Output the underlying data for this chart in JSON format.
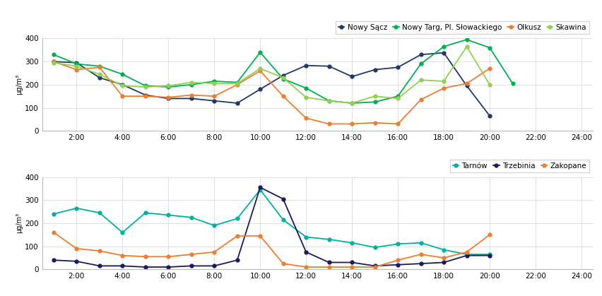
{
  "x_ticks": [
    "2:00",
    "4:00",
    "6:00",
    "8:00",
    "10:00",
    "12:00",
    "14:00",
    "16:00",
    "18:00",
    "20:00",
    "22:00",
    "24:00"
  ],
  "xtick_positions": [
    2,
    4,
    6,
    8,
    10,
    12,
    14,
    16,
    18,
    20,
    22,
    24
  ],
  "chart1_series": [
    {
      "label": "Nowy Sącz",
      "color": "#1f3864",
      "x": [
        1,
        2,
        3,
        4,
        5,
        6,
        7,
        8,
        9,
        10,
        11,
        12,
        13,
        14,
        15,
        16,
        17,
        18,
        19,
        20
      ],
      "y": [
        300,
        295,
        230,
        200,
        155,
        140,
        140,
        130,
        120,
        180,
        240,
        283,
        280,
        235,
        265,
        275,
        330,
        338,
        195,
        65
      ]
    },
    {
      "label": "Nowy Targ, Pl. Słowackiego",
      "color": "#00b050",
      "x": [
        1,
        2,
        3,
        4,
        5,
        6,
        7,
        8,
        9,
        10,
        11,
        12,
        13,
        14,
        15,
        16,
        17,
        18,
        19,
        20,
        21
      ],
      "y": [
        330,
        290,
        280,
        245,
        195,
        190,
        200,
        215,
        210,
        340,
        225,
        185,
        130,
        120,
        125,
        150,
        290,
        365,
        395,
        360,
        205
      ]
    },
    {
      "label": "Olkusz",
      "color": "#ed7d31",
      "x": [
        1,
        2,
        3,
        4,
        5,
        6,
        7,
        8,
        9,
        10,
        11,
        12,
        13,
        14,
        15,
        16,
        17,
        18,
        19,
        20
      ],
      "y": [
        300,
        265,
        275,
        150,
        150,
        145,
        155,
        150,
        200,
        260,
        150,
        55,
        30,
        30,
        35,
        30,
        135,
        185,
        205,
        270
      ]
    },
    {
      "label": "Skawina",
      "color": "#92d050",
      "x": [
        1,
        2,
        3,
        4,
        5,
        6,
        7,
        8,
        9,
        10,
        11,
        12,
        13,
        14,
        15,
        16,
        17,
        18,
        19,
        20
      ],
      "y": [
        295,
        280,
        245,
        195,
        190,
        195,
        210,
        205,
        205,
        270,
        230,
        145,
        130,
        120,
        150,
        140,
        220,
        215,
        365,
        200
      ]
    }
  ],
  "chart2_series": [
    {
      "label": "Tarnów",
      "color": "#00b0a0",
      "x": [
        1,
        2,
        3,
        4,
        5,
        6,
        7,
        8,
        9,
        10,
        11,
        12,
        13,
        14,
        15,
        16,
        17,
        18,
        19,
        20
      ],
      "y": [
        240,
        265,
        245,
        160,
        245,
        235,
        225,
        190,
        220,
        345,
        215,
        140,
        130,
        115,
        95,
        110,
        115,
        85,
        65,
        65
      ]
    },
    {
      "label": "Trzebinia",
      "color": "#1a1a5e",
      "x": [
        1,
        2,
        3,
        4,
        5,
        6,
        7,
        8,
        9,
        10,
        11,
        12,
        13,
        14,
        15,
        16,
        17,
        18,
        19,
        20
      ],
      "y": [
        40,
        35,
        15,
        15,
        10,
        10,
        15,
        15,
        40,
        355,
        305,
        75,
        30,
        30,
        15,
        20,
        25,
        30,
        60,
        60
      ]
    },
    {
      "label": "Zakopane",
      "color": "#ed7d31",
      "x": [
        1,
        2,
        3,
        4,
        5,
        6,
        7,
        8,
        9,
        10,
        11,
        12,
        13,
        14,
        15,
        16,
        17,
        18,
        19,
        20
      ],
      "y": [
        160,
        90,
        80,
        60,
        55,
        55,
        65,
        75,
        145,
        145,
        25,
        10,
        10,
        10,
        10,
        40,
        65,
        50,
        75,
        150
      ]
    }
  ],
  "ylabel": "µg/m³",
  "ylim": [
    0,
    400
  ],
  "yticks": [
    0,
    100,
    200,
    300,
    400
  ],
  "xlim_min": 0.5,
  "xlim_max": 24.5,
  "background_color": "#ffffff",
  "grid_color": "#d3d3d3",
  "tick_fontsize": 7.5,
  "legend_fontsize": 7.5,
  "ylabel_fontsize": 7,
  "linewidth": 1.3,
  "markersize": 3.5
}
